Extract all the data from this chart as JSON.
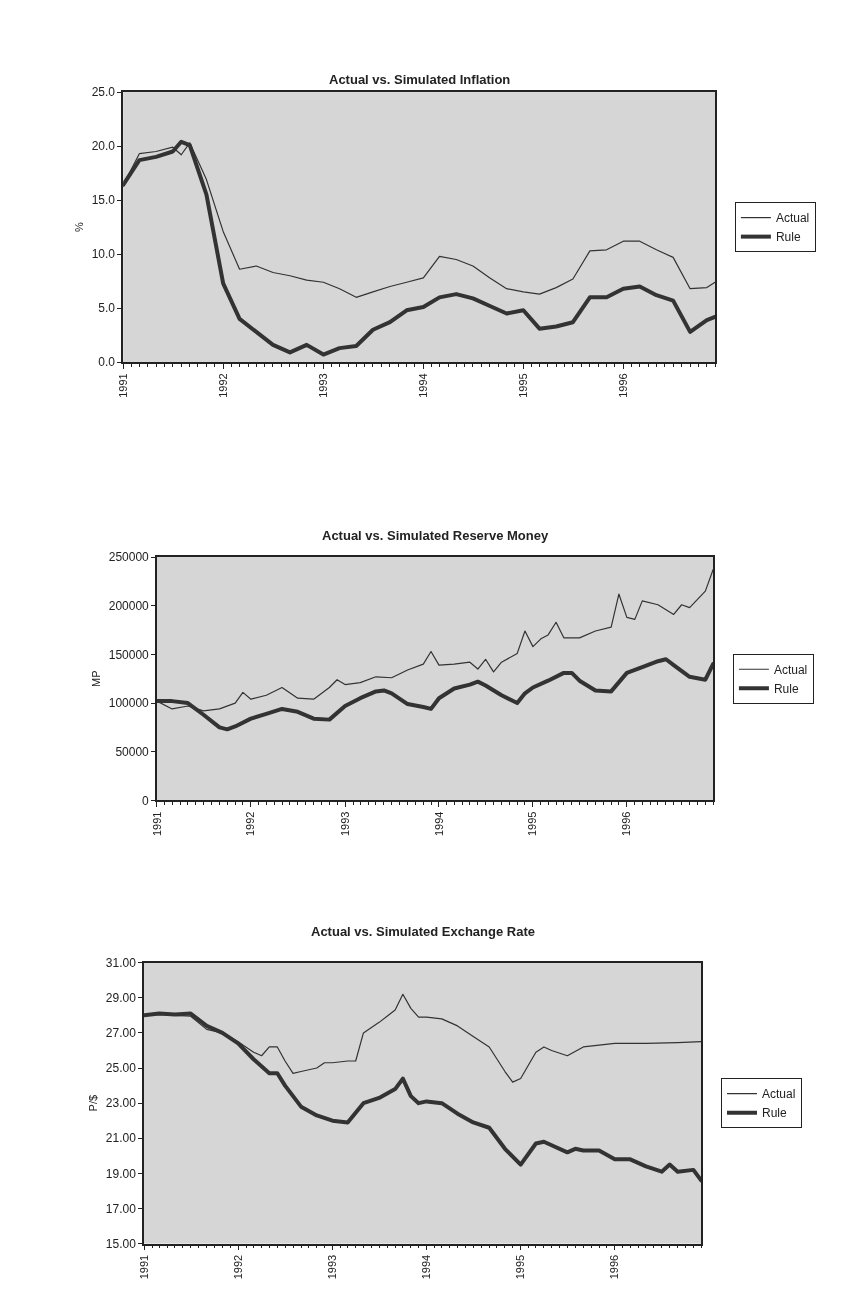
{
  "chart_data": [
    {
      "type": "line",
      "title": "Actual vs. Simulated Inflation",
      "ylabel": "%",
      "xlim": [
        "1991-01",
        "1996-12"
      ],
      "xticks": [
        {
          "value": "1991-01",
          "label": "1991"
        },
        {
          "value": "1992-01",
          "label": "1992"
        },
        {
          "value": "1993-01",
          "label": "1993"
        },
        {
          "value": "1994-01",
          "label": "1994"
        },
        {
          "value": "1995-01",
          "label": "1995"
        },
        {
          "value": "1996-01",
          "label": "1996"
        }
      ],
      "ylim": [
        0,
        25
      ],
      "yticks": [
        {
          "value": 0,
          "label": "0.0"
        },
        {
          "value": 5,
          "label": "5.0"
        },
        {
          "value": 10,
          "label": "10.0"
        },
        {
          "value": 15,
          "label": "15.0"
        },
        {
          "value": 20,
          "label": "20.0"
        },
        {
          "value": 25,
          "label": "25.0"
        }
      ],
      "legend": "right",
      "grid": false,
      "series": [
        {
          "name": "Actual",
          "color": "#333333",
          "x": [
            "1991-01",
            "1991-03",
            "1991-05",
            "1991-07",
            "1991-08",
            "1991-09",
            "1991-11",
            "1992-01",
            "1992-03",
            "1992-05",
            "1992-07",
            "1992-09",
            "1992-11",
            "1993-01",
            "1993-03",
            "1993-05",
            "1993-07",
            "1993-09",
            "1993-11",
            "1994-01",
            "1994-03",
            "1994-05",
            "1994-07",
            "1994-09",
            "1994-11",
            "1995-01",
            "1995-03",
            "1995-05",
            "1995-07",
            "1995-09",
            "1995-11",
            "1996-01",
            "1996-03",
            "1996-05",
            "1996-07",
            "1996-09",
            "1996-11",
            "1996-12"
          ],
          "values": [
            16.4,
            19.3,
            19.5,
            19.9,
            19.2,
            20.3,
            16.9,
            12.1,
            8.6,
            8.9,
            8.3,
            8.0,
            7.6,
            7.4,
            6.8,
            6.0,
            6.5,
            7.0,
            7.4,
            7.8,
            9.8,
            9.5,
            8.9,
            7.8,
            6.8,
            6.5,
            6.3,
            6.9,
            7.7,
            10.3,
            10.4,
            11.2,
            11.2,
            10.4,
            9.7,
            6.8,
            6.9,
            7.4
          ]
        },
        {
          "name": "Rule",
          "color": "#333333",
          "x": [
            "1991-01",
            "1991-03",
            "1991-05",
            "1991-07",
            "1991-08",
            "1991-09",
            "1991-11",
            "1992-01",
            "1992-03",
            "1992-05",
            "1992-07",
            "1992-09",
            "1992-11",
            "1993-01",
            "1993-03",
            "1993-05",
            "1993-07",
            "1993-09",
            "1993-11",
            "1994-01",
            "1994-03",
            "1994-05",
            "1994-07",
            "1994-09",
            "1994-11",
            "1995-01",
            "1995-03",
            "1995-05",
            "1995-07",
            "1995-09",
            "1995-11",
            "1996-01",
            "1996-03",
            "1996-05",
            "1996-07",
            "1996-09",
            "1996-11",
            "1996-12"
          ],
          "values": [
            16.4,
            18.7,
            19.0,
            19.5,
            20.4,
            20.1,
            15.5,
            7.3,
            4.0,
            2.8,
            1.6,
            0.9,
            1.6,
            0.7,
            1.3,
            1.5,
            3.0,
            3.7,
            4.8,
            5.1,
            6.0,
            6.3,
            5.9,
            5.2,
            4.5,
            4.8,
            3.1,
            3.3,
            3.7,
            6.0,
            6.0,
            6.8,
            7.0,
            6.2,
            5.7,
            2.8,
            3.9,
            4.2
          ]
        }
      ]
    },
    {
      "type": "line",
      "title": "Actual vs. Simulated Reserve Money",
      "ylabel": "MP",
      "xlim": [
        "1991-01",
        "1996-12"
      ],
      "xticks": [
        {
          "value": "1991-01",
          "label": "1991"
        },
        {
          "value": "1992-01",
          "label": "1992"
        },
        {
          "value": "1993-01",
          "label": "1993"
        },
        {
          "value": "1994-01",
          "label": "1994"
        },
        {
          "value": "1995-01",
          "label": "1995"
        },
        {
          "value": "1996-01",
          "label": "1996"
        }
      ],
      "ylim": [
        0,
        250000
      ],
      "yticks": [
        0,
        50000,
        100000,
        150000,
        200000,
        250000
      ],
      "legend": "right",
      "grid": false,
      "series": [
        {
          "name": "Actual",
          "color": "#333333",
          "x": [
            "1991-01",
            "1991-03",
            "1991-05",
            "1991-07",
            "1991-09",
            "1991-11",
            "1991-12",
            "1992-01",
            "1992-03",
            "1992-05",
            "1992-07",
            "1992-09",
            "1992-11",
            "1992-12",
            "1993-01",
            "1993-03",
            "1993-05",
            "1993-07",
            "1993-09",
            "1993-11",
            "1993-12",
            "1994-01",
            "1994-03",
            "1994-05",
            "1994-06",
            "1994-07",
            "1994-08",
            "1994-09",
            "1994-11",
            "1994-12",
            "1995-01",
            "1995-02",
            "1995-03",
            "1995-04",
            "1995-05",
            "1995-07",
            "1995-09",
            "1995-11",
            "1995-12",
            "1996-01",
            "1996-02",
            "1996-03",
            "1996-05",
            "1996-07",
            "1996-08",
            "1996-09",
            "1996-11",
            "1996-12"
          ],
          "values": [
            102000,
            94000,
            97000,
            92000,
            94000,
            100000,
            111000,
            104000,
            108000,
            116000,
            105000,
            104000,
            116000,
            124000,
            119000,
            121000,
            127000,
            126000,
            134000,
            140000,
            153000,
            139000,
            140000,
            142000,
            135000,
            145000,
            132000,
            142000,
            151000,
            174000,
            158000,
            166000,
            170000,
            183000,
            167000,
            167000,
            174000,
            178000,
            212000,
            188000,
            186000,
            205000,
            201000,
            191000,
            201000,
            198000,
            215000,
            237000
          ]
        },
        {
          "name": "Rule",
          "color": "#333333",
          "x": [
            "1991-01",
            "1991-03",
            "1991-05",
            "1991-07",
            "1991-09",
            "1991-10",
            "1991-11",
            "1992-01",
            "1992-03",
            "1992-05",
            "1992-07",
            "1992-09",
            "1992-11",
            "1993-01",
            "1993-03",
            "1993-05",
            "1993-06",
            "1993-07",
            "1993-09",
            "1993-11",
            "1993-12",
            "1994-01",
            "1994-03",
            "1994-05",
            "1994-06",
            "1994-07",
            "1994-09",
            "1994-11",
            "1994-12",
            "1995-01",
            "1995-03",
            "1995-05",
            "1995-06",
            "1995-07",
            "1995-09",
            "1995-11",
            "1996-01",
            "1996-03",
            "1996-05",
            "1996-06",
            "1996-07",
            "1996-09",
            "1996-11",
            "1996-12"
          ],
          "values": [
            102000,
            102000,
            100000,
            88000,
            75000,
            73000,
            76000,
            84000,
            89000,
            94000,
            91000,
            84000,
            83000,
            97000,
            105000,
            112000,
            113000,
            110000,
            99000,
            96000,
            94000,
            105000,
            115000,
            119000,
            122000,
            118000,
            108000,
            100000,
            110000,
            116000,
            123000,
            131000,
            131000,
            123000,
            113000,
            112000,
            131000,
            137000,
            143000,
            145000,
            139000,
            127000,
            124000,
            140000
          ]
        }
      ]
    },
    {
      "type": "line",
      "title": "Actual vs. Simulated Exchange Rate",
      "ylabel": "P/$",
      "xlim": [
        "1991-01",
        "1996-12"
      ],
      "xticks": [
        {
          "value": "1991-01",
          "label": "1991"
        },
        {
          "value": "1992-01",
          "label": "1992"
        },
        {
          "value": "1993-01",
          "label": "1993"
        },
        {
          "value": "1994-01",
          "label": "1994"
        },
        {
          "value": "1995-01",
          "label": "1995"
        },
        {
          "value": "1996-01",
          "label": "1996"
        }
      ],
      "ylim": [
        15,
        31
      ],
      "yticks": [
        {
          "value": 15,
          "label": "15.00"
        },
        {
          "value": 17,
          "label": "17.00"
        },
        {
          "value": 19,
          "label": "19.00"
        },
        {
          "value": 21,
          "label": "21.00"
        },
        {
          "value": 23,
          "label": "23.00"
        },
        {
          "value": 25,
          "label": "25.00"
        },
        {
          "value": 27,
          "label": "27.00"
        },
        {
          "value": 29,
          "label": "29.00"
        },
        {
          "value": 31,
          "label": "31.00"
        }
      ],
      "legend": "right",
      "grid": false,
      "series": [
        {
          "name": "Actual",
          "color": "#333333",
          "x": [
            "1991-01",
            "1991-03",
            "1991-05",
            "1991-07",
            "1991-09",
            "1991-11",
            "1992-01",
            "1992-03",
            "1992-04",
            "1992-05",
            "1992-06",
            "1992-07",
            "1992-08",
            "1992-09",
            "1992-11",
            "1992-12",
            "1993-01",
            "1993-03",
            "1993-04",
            "1993-05",
            "1993-07",
            "1993-09",
            "1993-10",
            "1993-11",
            "1993-12",
            "1994-01",
            "1994-03",
            "1994-05",
            "1994-07",
            "1994-09",
            "1994-11",
            "1994-12",
            "1995-01",
            "1995-03",
            "1995-04",
            "1995-05",
            "1995-07",
            "1995-09",
            "1995-11",
            "1996-01",
            "1996-05",
            "1996-09",
            "1996-12"
          ],
          "values": [
            28.0,
            28.05,
            28.0,
            27.95,
            27.2,
            27.0,
            26.5,
            25.9,
            25.7,
            26.2,
            26.2,
            25.4,
            24.7,
            24.8,
            25.0,
            25.3,
            25.3,
            25.4,
            25.4,
            27.0,
            27.6,
            28.3,
            29.2,
            28.4,
            27.9,
            27.9,
            27.8,
            27.4,
            26.8,
            26.2,
            24.8,
            24.2,
            24.4,
            25.9,
            26.2,
            26.0,
            25.7,
            26.2,
            26.3,
            26.4,
            26.4,
            26.45,
            26.5
          ]
        },
        {
          "name": "Rule",
          "color": "#333333",
          "x": [
            "1991-01",
            "1991-03",
            "1991-05",
            "1991-07",
            "1991-09",
            "1991-11",
            "1992-01",
            "1992-03",
            "1992-05",
            "1992-06",
            "1992-07",
            "1992-09",
            "1992-11",
            "1993-01",
            "1993-03",
            "1993-05",
            "1993-07",
            "1993-09",
            "1993-10",
            "1993-11",
            "1993-12",
            "1994-01",
            "1994-03",
            "1994-05",
            "1994-07",
            "1994-09",
            "1994-11",
            "1995-01",
            "1995-03",
            "1995-04",
            "1995-05",
            "1995-07",
            "1995-08",
            "1995-09",
            "1995-11",
            "1996-01",
            "1996-03",
            "1996-05",
            "1996-07",
            "1996-08",
            "1996-09",
            "1996-11",
            "1996-12"
          ],
          "values": [
            28.0,
            28.1,
            28.05,
            28.1,
            27.4,
            27.0,
            26.4,
            25.5,
            24.7,
            24.7,
            24.0,
            22.8,
            22.3,
            22.0,
            21.9,
            23.0,
            23.3,
            23.8,
            24.4,
            23.4,
            23.0,
            23.1,
            23.0,
            22.4,
            21.9,
            21.6,
            20.4,
            19.5,
            20.7,
            20.8,
            20.6,
            20.2,
            20.4,
            20.3,
            20.3,
            19.8,
            19.8,
            19.4,
            19.1,
            19.5,
            19.1,
            19.2,
            18.6
          ]
        }
      ]
    }
  ]
}
